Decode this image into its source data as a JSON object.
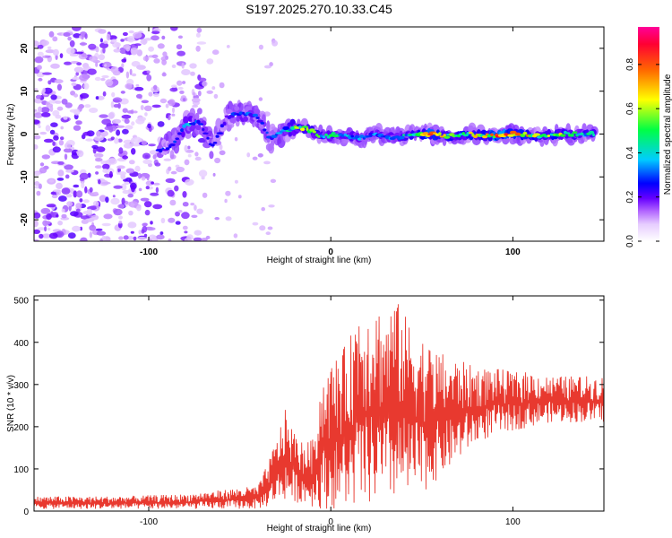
{
  "figure_title": "S197.2025.270.10.33.C45",
  "colors": {
    "snr_line": "#e8392f",
    "frame": "#000000"
  },
  "chart_data": [
    {
      "type": "heatmap",
      "title": "S197.2025.270.10.33.C45",
      "xlabel": "Height of straight line (km)",
      "ylabel": "Frequency (Hz)",
      "xlim": [
        -163,
        150
      ],
      "ylim": [
        -25,
        25
      ],
      "xticks": [
        -100,
        0,
        100
      ],
      "yticks": [
        -20,
        -10,
        0,
        10,
        20
      ],
      "colorbar": {
        "label": "Normalized spectral amplitude",
        "range": [
          0.0,
          0.97
        ],
        "ticks": [
          0.0,
          0.2,
          0.4,
          0.6,
          0.8
        ],
        "tick_labels": [
          "0.0",
          "0.2",
          "0.4",
          "0.6",
          "0.8"
        ],
        "colormap": [
          "#ffffff",
          "#cc99ff",
          "#6600ff",
          "#0000ff",
          "#00ccff",
          "#00ff33",
          "#ffff00",
          "#ff6600",
          "#ff0033",
          "#ff0099"
        ]
      },
      "ridge": {
        "description": "dominant signal frequency vs height",
        "points": [
          {
            "x": -95,
            "f": -4,
            "a": 0.35
          },
          {
            "x": -88,
            "f": -3,
            "a": 0.3
          },
          {
            "x": -80,
            "f": 2,
            "a": 0.45
          },
          {
            "x": -72,
            "f": 3,
            "a": 0.4
          },
          {
            "x": -65,
            "f": -3,
            "a": 0.35
          },
          {
            "x": -57,
            "f": 4,
            "a": 0.3
          },
          {
            "x": -48,
            "f": 5,
            "a": 0.4
          },
          {
            "x": -40,
            "f": 4,
            "a": 0.35
          },
          {
            "x": -33,
            "f": -1,
            "a": 0.35
          },
          {
            "x": -25,
            "f": 1,
            "a": 0.45
          },
          {
            "x": -15,
            "f": 1.5,
            "a": 0.7
          },
          {
            "x": -5,
            "f": -0.5,
            "a": 0.55
          },
          {
            "x": 5,
            "f": 0,
            "a": 0.5
          },
          {
            "x": 15,
            "f": -1,
            "a": 0.45
          },
          {
            "x": 25,
            "f": 0,
            "a": 0.4
          },
          {
            "x": 35,
            "f": -1,
            "a": 0.45
          },
          {
            "x": 45,
            "f": 0,
            "a": 0.55
          },
          {
            "x": 55,
            "f": 0,
            "a": 0.8
          },
          {
            "x": 65,
            "f": -0.5,
            "a": 0.6
          },
          {
            "x": 75,
            "f": 0,
            "a": 0.65
          },
          {
            "x": 85,
            "f": -0.5,
            "a": 0.7
          },
          {
            "x": 95,
            "f": 0,
            "a": 0.85
          },
          {
            "x": 105,
            "f": 0,
            "a": 0.75
          },
          {
            "x": 115,
            "f": -0.5,
            "a": 0.6
          },
          {
            "x": 125,
            "f": 0,
            "a": 0.65
          },
          {
            "x": 135,
            "f": 0,
            "a": 0.55
          },
          {
            "x": 145,
            "f": 0,
            "a": 0.5
          }
        ]
      },
      "background_noise": {
        "x_range": [
          -163,
          -95
        ],
        "level": 0.2
      }
    },
    {
      "type": "line",
      "xlabel": "Height of straight line (km)",
      "ylabel": "SNR (10 * v/v)",
      "xlim": [
        -163,
        150
      ],
      "ylim": [
        0,
        510
      ],
      "xticks": [
        -100,
        0,
        100
      ],
      "yticks": [
        0,
        100,
        200,
        300,
        400,
        500
      ],
      "series": [
        {
          "name": "SNR",
          "envelope_x": [
            -163,
            -120,
            -80,
            -50,
            -40,
            -35,
            -30,
            -25,
            -20,
            -15,
            -10,
            -5,
            0,
            5,
            10,
            15,
            20,
            25,
            30,
            35,
            40,
            45,
            50,
            55,
            60,
            65,
            70,
            75,
            80,
            90,
            100,
            110,
            120,
            130,
            140,
            150
          ],
          "envelope_min": [
            5,
            5,
            5,
            5,
            5,
            10,
            20,
            25,
            20,
            20,
            10,
            5,
            5,
            5,
            5,
            10,
            10,
            15,
            20,
            20,
            25,
            30,
            40,
            60,
            80,
            100,
            120,
            140,
            160,
            180,
            190,
            200,
            210,
            210,
            210,
            210
          ],
          "envelope_max": [
            35,
            35,
            40,
            55,
            60,
            110,
            170,
            240,
            190,
            160,
            170,
            320,
            350,
            380,
            400,
            500,
            480,
            500,
            460,
            510,
            470,
            440,
            420,
            390,
            380,
            360,
            360,
            350,
            340,
            340,
            330,
            330,
            320,
            320,
            320,
            320
          ]
        }
      ]
    }
  ]
}
